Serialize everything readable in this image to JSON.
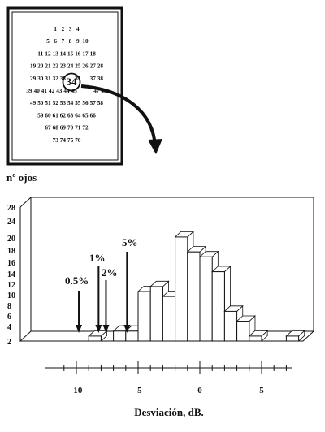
{
  "visual_field": {
    "rows": [
      [
        "1",
        "2",
        "3",
        "4"
      ],
      [
        "5",
        "6",
        "7",
        "8",
        "9",
        "10"
      ],
      [
        "11",
        "12",
        "13",
        "14",
        "15",
        "16",
        "17",
        "18"
      ],
      [
        "19",
        "20",
        "21",
        "22",
        "23",
        "24",
        "25",
        "26",
        "27",
        "28"
      ],
      [
        "29",
        "30",
        "31",
        "32",
        "33",
        "34",
        "35",
        "",
        "37",
        "38"
      ],
      [
        "39",
        "40",
        "41",
        "42",
        "43",
        "44",
        "45",
        "",
        "",
        "47",
        "48"
      ],
      [
        "49",
        "50",
        "51",
        "52",
        "53",
        "54",
        "55",
        "56",
        "57",
        "58"
      ],
      [
        "59",
        "60",
        "61",
        "62",
        "63",
        "64",
        "65",
        "66"
      ],
      [
        "67",
        "68",
        "69",
        "70",
        "71",
        "72"
      ],
      [
        "73",
        "74",
        "75",
        "76"
      ]
    ],
    "highlighted_point": "34"
  },
  "chart_data": {
    "type": "bar",
    "ylabel": "nº ojos",
    "xlabel": "Desviación, dB.",
    "yticks": [
      "28",
      "24",
      "20",
      "18",
      "16",
      "14",
      "12",
      "10",
      "8",
      "6",
      "4",
      "2"
    ],
    "xticks": [
      "-10",
      "-5",
      "0",
      "5"
    ],
    "xlim": [
      -11.5,
      8.3
    ],
    "ylim": [
      0,
      26
    ],
    "bin_width": 1,
    "bars": [
      {
        "x": -8.5,
        "value": 1
      },
      {
        "x": -6.5,
        "value": 2
      },
      {
        "x": -5.5,
        "value": 2
      },
      {
        "x": -4.5,
        "value": 10
      },
      {
        "x": -3.5,
        "value": 11
      },
      {
        "x": -2.5,
        "value": 9
      },
      {
        "x": -1.5,
        "value": 21
      },
      {
        "x": -0.5,
        "value": 18
      },
      {
        "x": 0.5,
        "value": 17
      },
      {
        "x": 1.5,
        "value": 14
      },
      {
        "x": 2.5,
        "value": 6
      },
      {
        "x": 3.5,
        "value": 4
      },
      {
        "x": 4.5,
        "value": 1
      },
      {
        "x": 7.5,
        "value": 1
      }
    ],
    "percentiles": [
      {
        "label": "0.5%",
        "x": -9.8
      },
      {
        "label": "1%",
        "x": -8.2
      },
      {
        "label": "2%",
        "x": -7.6
      },
      {
        "label": "5%",
        "x": -5.9
      }
    ]
  }
}
